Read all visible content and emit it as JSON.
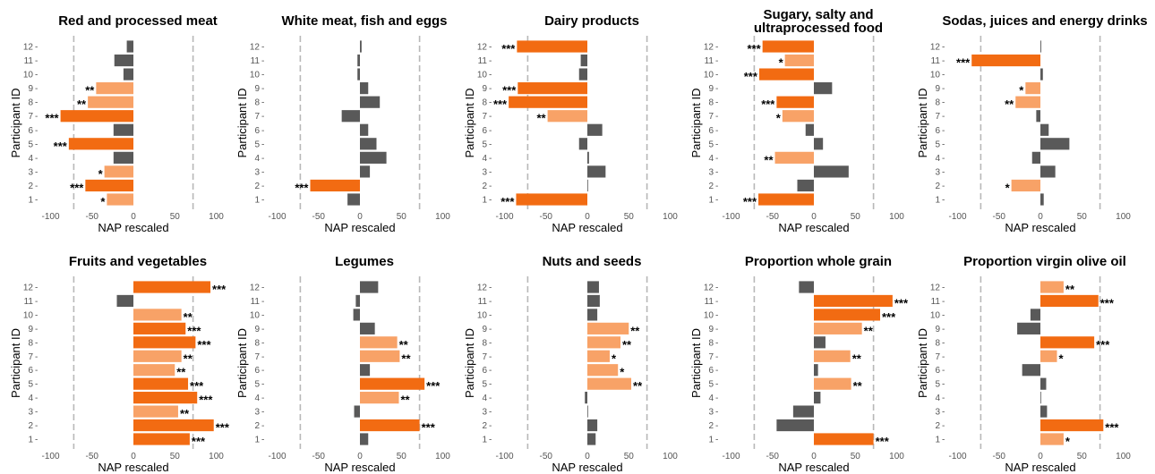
{
  "chart_data": [
    {
      "type": "bar",
      "title": "Red and processed meat",
      "xlabel": "NAP rescaled",
      "ylabel": "Participant ID",
      "categories": [
        "1",
        "2",
        "3",
        "4",
        "5",
        "6",
        "7",
        "8",
        "9",
        "10",
        "11",
        "12"
      ],
      "values": [
        -32,
        -58,
        -35,
        -24,
        -78,
        -24,
        -88,
        -55,
        -45,
        -12,
        -23,
        -8
      ],
      "significance": [
        "*",
        "***",
        "*",
        "",
        "***",
        "",
        "***",
        "**",
        "**",
        "",
        "",
        ""
      ],
      "x_ticks": [
        "-100",
        "-50",
        "0",
        "50",
        "100"
      ],
      "xlim": [
        -100,
        100
      ],
      "threshold_lines": [
        -72,
        72
      ],
      "orientation": "horizontal"
    },
    {
      "type": "bar",
      "title": "White meat, fish and eggs",
      "xlabel": "NAP rescaled",
      "ylabel": "Participant ID",
      "categories": [
        "1",
        "2",
        "3",
        "4",
        "5",
        "6",
        "7",
        "8",
        "9",
        "10",
        "11",
        "12"
      ],
      "values": [
        -15,
        -60,
        12,
        32,
        20,
        10,
        -22,
        24,
        10,
        -3,
        -3,
        2
      ],
      "significance": [
        "",
        "***",
        "",
        "",
        "",
        "",
        "",
        "",
        "",
        "",
        "",
        ""
      ],
      "x_ticks": [
        "-100",
        "-50",
        "0",
        "50",
        "100"
      ],
      "xlim": [
        -100,
        100
      ],
      "threshold_lines": [
        -72,
        72
      ],
      "orientation": "horizontal"
    },
    {
      "type": "bar",
      "title": "Dairy products",
      "xlabel": "NAP rescaled",
      "ylabel": "Participant ID",
      "categories": [
        "1",
        "2",
        "3",
        "4",
        "5",
        "6",
        "7",
        "8",
        "9",
        "10",
        "11",
        "12"
      ],
      "values": [
        -86,
        0,
        22,
        2,
        -10,
        18,
        -48,
        -95,
        -84,
        -10,
        -8,
        -85
      ],
      "significance": [
        "***",
        "",
        "",
        "",
        "",
        "",
        "**",
        "***",
        "***",
        "",
        "",
        "***"
      ],
      "x_ticks": [
        "-100",
        "-50",
        "0",
        "50",
        "100"
      ],
      "xlim": [
        -100,
        100
      ],
      "threshold_lines": [
        -72,
        72
      ],
      "orientation": "horizontal"
    },
    {
      "type": "bar",
      "title": "Sugary, salty and ultraprocessed food",
      "xlabel": "NAP rescaled",
      "ylabel": "Participant ID",
      "categories": [
        "1",
        "2",
        "3",
        "4",
        "5",
        "6",
        "7",
        "8",
        "9",
        "10",
        "11",
        "12"
      ],
      "values": [
        -67,
        -20,
        42,
        -47,
        11,
        -10,
        -38,
        -45,
        22,
        -66,
        -35,
        -62
      ],
      "significance": [
        "***",
        "",
        "",
        "**",
        "",
        "",
        "*",
        "***",
        "",
        "***",
        "*",
        "***"
      ],
      "x_ticks": [
        "-100",
        "-50",
        "0",
        "50",
        "100"
      ],
      "xlim": [
        -100,
        100
      ],
      "threshold_lines": [
        -72,
        72
      ],
      "orientation": "horizontal"
    },
    {
      "type": "bar",
      "title": "Sodas, juices and energy drinks",
      "xlabel": "NAP rescaled",
      "ylabel": "Participant ID",
      "categories": [
        "1",
        "2",
        "3",
        "4",
        "5",
        "6",
        "7",
        "8",
        "9",
        "10",
        "11",
        "12"
      ],
      "values": [
        4,
        -35,
        18,
        -10,
        35,
        10,
        -5,
        -30,
        -18,
        3,
        -83,
        1
      ],
      "significance": [
        "",
        "*",
        "",
        "",
        "",
        "",
        "",
        "**",
        "*",
        "",
        "***",
        ""
      ],
      "x_ticks": [
        "-100",
        "-50",
        "0",
        "50",
        "100"
      ],
      "xlim": [
        -100,
        100
      ],
      "threshold_lines": [
        -72,
        72
      ],
      "orientation": "horizontal"
    },
    {
      "type": "bar",
      "title": "Fruits and vegetables",
      "xlabel": "NAP rescaled",
      "ylabel": "Participant ID",
      "categories": [
        "1",
        "2",
        "3",
        "4",
        "5",
        "6",
        "7",
        "8",
        "9",
        "10",
        "11",
        "12"
      ],
      "values": [
        68,
        97,
        54,
        77,
        66,
        50,
        58,
        75,
        63,
        58,
        -20,
        93
      ],
      "significance": [
        "***",
        "***",
        "**",
        "***",
        "***",
        "**",
        "**",
        "***",
        "***",
        "**",
        "",
        "***"
      ],
      "x_ticks": [
        "-100",
        "-50",
        "0",
        "50",
        "100"
      ],
      "xlim": [
        -100,
        100
      ],
      "threshold_lines": [
        -72,
        72
      ],
      "orientation": "horizontal"
    },
    {
      "type": "bar",
      "title": "Legumes",
      "xlabel": "NAP rescaled",
      "ylabel": "Participant ID",
      "categories": [
        "1",
        "2",
        "3",
        "4",
        "5",
        "6",
        "7",
        "8",
        "9",
        "10",
        "11",
        "12"
      ],
      "values": [
        10,
        72,
        -7,
        47,
        78,
        12,
        48,
        45,
        18,
        -8,
        -5,
        22
      ],
      "significance": [
        "",
        "***",
        "",
        "**",
        "***",
        "",
        "**",
        "**",
        "",
        "",
        "",
        ""
      ],
      "x_ticks": [
        "-100",
        "-50",
        "0",
        "50",
        "100"
      ],
      "xlim": [
        -100,
        100
      ],
      "threshold_lines": [
        -72,
        72
      ],
      "orientation": "horizontal"
    },
    {
      "type": "bar",
      "title": "Nuts and seeds",
      "xlabel": "NAP rescaled",
      "ylabel": "Participant ID",
      "categories": [
        "1",
        "2",
        "3",
        "4",
        "5",
        "6",
        "7",
        "8",
        "9",
        "10",
        "11",
        "12"
      ],
      "values": [
        10,
        12,
        0,
        -3,
        53,
        37,
        27,
        40,
        50,
        12,
        15,
        14
      ],
      "significance": [
        "",
        "",
        "",
        "",
        "**",
        "*",
        "*",
        "**",
        "**",
        "",
        "",
        ""
      ],
      "x_ticks": [
        "-100",
        "-50",
        "0",
        "50",
        "100"
      ],
      "xlim": [
        -100,
        100
      ],
      "threshold_lines": [
        -72,
        72
      ],
      "orientation": "horizontal"
    },
    {
      "type": "bar",
      "title": "Proportion whole grain",
      "xlabel": "NAP rescaled",
      "ylabel": "Participant ID",
      "categories": [
        "1",
        "2",
        "3",
        "4",
        "5",
        "6",
        "7",
        "8",
        "9",
        "10",
        "11",
        "12"
      ],
      "values": [
        72,
        -45,
        -25,
        8,
        45,
        5,
        44,
        14,
        58,
        80,
        95,
        -18
      ],
      "significance": [
        "***",
        "",
        "",
        "",
        "**",
        "",
        "**",
        "",
        "**",
        "***",
        "***",
        ""
      ],
      "x_ticks": [
        "-100",
        "-50",
        "0",
        "50",
        "100"
      ],
      "xlim": [
        -100,
        100
      ],
      "threshold_lines": [
        -72,
        72
      ],
      "orientation": "horizontal"
    },
    {
      "type": "bar",
      "title": "Proportion virgin olive oil",
      "xlabel": "NAP rescaled",
      "ylabel": "Participant ID",
      "categories": [
        "1",
        "2",
        "3",
        "4",
        "5",
        "6",
        "7",
        "8",
        "9",
        "10",
        "11",
        "12"
      ],
      "values": [
        28,
        76,
        8,
        0,
        7,
        -22,
        20,
        65,
        -28,
        -12,
        70,
        28
      ],
      "significance": [
        "*",
        "***",
        "",
        "",
        "",
        "",
        "*",
        "***",
        "",
        "",
        "***",
        "**"
      ],
      "x_ticks": [
        "-100",
        "-50",
        "0",
        "50",
        "100"
      ],
      "xlim": [
        -100,
        100
      ],
      "threshold_lines": [
        -72,
        72
      ],
      "orientation": "horizontal"
    }
  ],
  "colors": {
    "highly_significant": "#f26b12",
    "significant": "#f8a267",
    "not_significant": "#595959",
    "threshold_line": "#b8b8b8",
    "tick_text": "#555555"
  }
}
